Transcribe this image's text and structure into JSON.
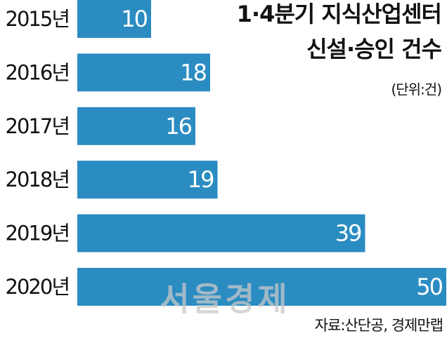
{
  "chart_data": {
    "type": "bar",
    "orientation": "horizontal",
    "title": [
      "1·4분기 지식산업센터",
      "신설·승인 건수"
    ],
    "unit": "(단위:건)",
    "source": "자료:산단공, 경제만랩",
    "watermark": "서울경제",
    "categories": [
      "2015년",
      "2016년",
      "2017년",
      "2018년",
      "2019년",
      "2020년"
    ],
    "values": [
      10,
      18,
      16,
      19,
      39,
      50
    ],
    "color": "#2b8cc2"
  }
}
